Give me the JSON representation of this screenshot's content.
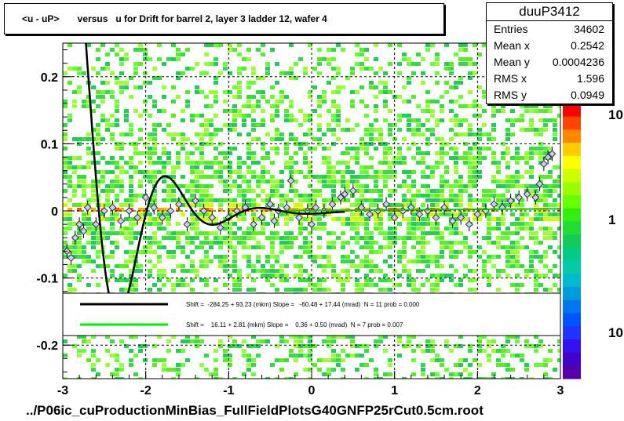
{
  "chart_data": {
    "type": "scatter",
    "title": "<u - uP>       versus   u for Drift for barrel 2, layer 3 ladder 12, wafer 4",
    "xlim": [
      -3,
      3
    ],
    "ylim": [
      -0.25,
      0.25
    ],
    "x_ticks": [
      "-3",
      "-2",
      "-1",
      "0",
      "1",
      "2",
      "3"
    ],
    "y_ticks": [
      "-0.2",
      "-0.1",
      "0",
      "0.1",
      "0.2"
    ],
    "z_ticks": [
      "1",
      "10"
    ],
    "z_tick_top": "10",
    "grid": true,
    "legend_placement": "bottom",
    "footer": "../P06ic_cuProductionMinBias_FullFieldPlotsG40GNFP25rCut0.5cm.root",
    "stats": {
      "name": "duuP3412",
      "rows": [
        {
          "label": "Entries",
          "value": "34602"
        },
        {
          "label": "Mean x",
          "value": "0.2542"
        },
        {
          "label": "Mean y",
          "value": "0.0004236"
        },
        {
          "label": "RMS x",
          "value": "1.596"
        },
        {
          "label": "RMS y",
          "value": "0.0949"
        }
      ]
    },
    "legend": [
      {
        "color": "#000000",
        "text": "Shift =  -284.25 + 93.23 (mkm) Slope =   -60.48 + 17.44 (mrad)  N = 11 prob = 0.000"
      },
      {
        "color": "#00ee00",
        "text": "Shift =    16.11 + 2.81 (mkm) Slope =    0.36 + 0.50 (mrad)  N = 7 prob = 0.007"
      }
    ],
    "profile_points": [
      [
        -2.95,
        -0.06
      ],
      [
        -2.9,
        -0.07
      ],
      [
        -2.85,
        -0.04
      ],
      [
        -2.8,
        -0.02
      ],
      [
        -2.75,
        -0.03
      ],
      [
        -2.7,
        0.005
      ],
      [
        -2.6,
        -0.02
      ],
      [
        -2.5,
        0.0
      ],
      [
        -2.4,
        0.005
      ],
      [
        -2.3,
        -0.015
      ],
      [
        -2.2,
        0.0
      ],
      [
        -2.1,
        -0.01
      ],
      [
        -2.0,
        0.02
      ],
      [
        -1.9,
        0.005
      ],
      [
        -1.8,
        -0.01
      ],
      [
        -1.7,
        0.0
      ],
      [
        -1.6,
        0.01
      ],
      [
        -1.5,
        -0.02
      ],
      [
        -1.4,
        0.015
      ],
      [
        -1.3,
        0.0
      ],
      [
        -1.2,
        -0.01
      ],
      [
        -1.1,
        -0.025
      ],
      [
        -1.0,
        -0.01
      ],
      [
        -0.9,
        0.0
      ],
      [
        -0.8,
        0.005
      ],
      [
        -0.7,
        -0.02
      ],
      [
        -0.6,
        -0.01
      ],
      [
        -0.5,
        0.01
      ],
      [
        -0.45,
        -0.015
      ],
      [
        -0.4,
        0.0
      ],
      [
        -0.3,
        0.005
      ],
      [
        -0.25,
        0.045
      ],
      [
        -0.15,
        -0.01
      ],
      [
        -0.05,
        0.0
      ],
      [
        0.0,
        -0.02
      ],
      [
        0.05,
        0.005
      ],
      [
        0.15,
        0.0
      ],
      [
        0.25,
        0.01
      ],
      [
        0.35,
        0.02
      ],
      [
        0.4,
        0.025
      ],
      [
        0.5,
        0.03
      ],
      [
        0.6,
        0.005
      ],
      [
        0.7,
        -0.005
      ],
      [
        0.8,
        0.0
      ],
      [
        0.9,
        0.01
      ],
      [
        1.0,
        -0.01
      ],
      [
        1.1,
        0.0
      ],
      [
        1.2,
        0.005
      ],
      [
        1.3,
        -0.005
      ],
      [
        1.4,
        0.0
      ],
      [
        1.5,
        -0.01
      ],
      [
        1.6,
        0.005
      ],
      [
        1.7,
        -0.015
      ],
      [
        1.8,
        -0.01
      ],
      [
        1.9,
        -0.02
      ],
      [
        2.0,
        -0.005
      ],
      [
        2.1,
        0.0
      ],
      [
        2.2,
        0.01
      ],
      [
        2.3,
        0.005
      ],
      [
        2.4,
        0.015
      ],
      [
        2.5,
        0.02
      ],
      [
        2.6,
        0.025
      ],
      [
        2.7,
        0.02
      ],
      [
        2.75,
        0.04
      ],
      [
        2.8,
        0.07
      ],
      [
        2.85,
        0.08
      ],
      [
        2.9,
        0.085
      ]
    ]
  }
}
